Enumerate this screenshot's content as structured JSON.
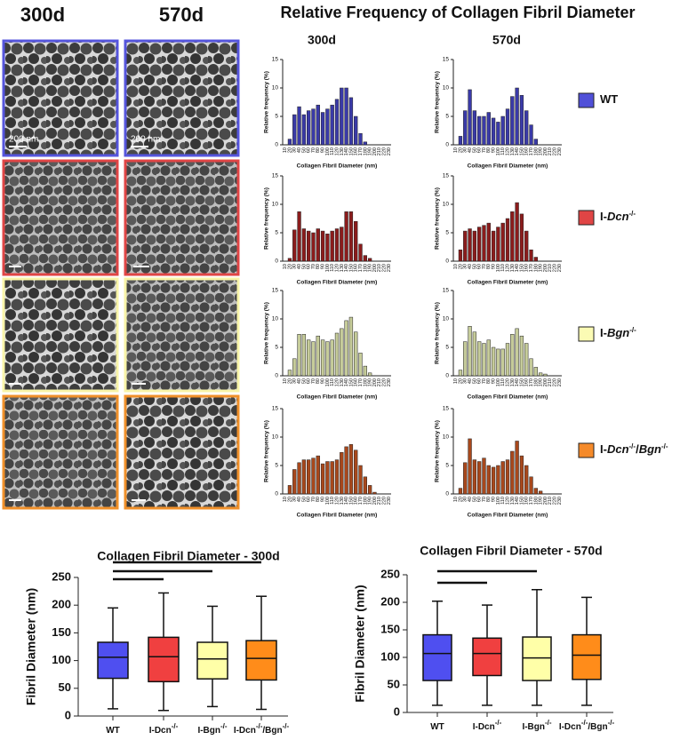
{
  "columns": [
    "300d",
    "570d"
  ],
  "figure_title": "Relative  Frequency of Collagen Fibril Diameter",
  "scale_bar": "200 nm",
  "genotypes": [
    {
      "color": "#5050d8",
      "parts": [
        {
          "text": "WT"
        }
      ]
    },
    {
      "color": "#e04545",
      "parts": [
        {
          "text": "I-"
        },
        {
          "text": "Dcn",
          "italic": true
        },
        {
          "text": "-/-",
          "sup": true
        }
      ]
    },
    {
      "color": "#fbfbb4",
      "parts": [
        {
          "text": "I-"
        },
        {
          "text": "Bgn",
          "italic": true
        },
        {
          "text": "-/-",
          "sup": true
        }
      ]
    },
    {
      "color": "#f58a2a",
      "parts": [
        {
          "text": "I-"
        },
        {
          "text": "Dcn",
          "italic": true
        },
        {
          "text": "-/-",
          "sup": true
        },
        {
          "text": "/"
        },
        {
          "text": "Bgn",
          "italic": true
        },
        {
          "text": "-/-",
          "sup": true
        }
      ]
    }
  ],
  "chart_data": [
    {
      "type": "bar",
      "ylabel": "Relative frequency (%)",
      "xlabel": "Collagen Fibril Diameter (nm)",
      "color": "#3a3aa8",
      "categories": [
        "10",
        "20",
        "30",
        "40",
        "50",
        "60",
        "70",
        "80",
        "90",
        "100",
        "110",
        "120",
        "130",
        "140",
        "150",
        "160",
        "170",
        "180",
        "190",
        "200",
        "210",
        "220",
        "230"
      ],
      "values": [
        0,
        1,
        5.3,
        6.7,
        5.3,
        6,
        6.3,
        7,
        5.7,
        6.3,
        7,
        8,
        10,
        10,
        8.3,
        5,
        2,
        0.5,
        0,
        0,
        0,
        0,
        0
      ],
      "ylim": [
        0,
        15
      ],
      "yticks": [
        0,
        5,
        10,
        15
      ]
    },
    {
      "type": "bar",
      "ylabel": "Relative frequency (%)",
      "xlabel": "Collagen Fibril Diameter (nm)",
      "color": "#3a3aa8",
      "categories": [
        "10",
        "20",
        "30",
        "40",
        "50",
        "60",
        "70",
        "80",
        "90",
        "100",
        "110",
        "120",
        "130",
        "140",
        "150",
        "160",
        "170",
        "180",
        "190",
        "200",
        "210",
        "220",
        "230"
      ],
      "values": [
        0,
        1.5,
        6,
        9.7,
        6,
        5,
        5,
        5.7,
        4.7,
        4,
        5,
        6.3,
        8.5,
        10,
        8.7,
        6,
        3.5,
        1,
        0,
        0,
        0,
        0,
        0
      ],
      "ylim": [
        0,
        15
      ],
      "yticks": [
        0,
        5,
        10,
        15
      ]
    },
    {
      "type": "bar",
      "ylabel": "Relative frequency (%)",
      "xlabel": "Collagen Fibril Diameter (nm)",
      "color": "#8b1c1c",
      "categories": [
        "10",
        "20",
        "30",
        "40",
        "50",
        "60",
        "70",
        "80",
        "90",
        "100",
        "110",
        "120",
        "130",
        "140",
        "150",
        "160",
        "170",
        "180",
        "190",
        "200",
        "210",
        "220",
        "230"
      ],
      "values": [
        0,
        0.5,
        5.5,
        8.7,
        5.7,
        5.3,
        5,
        5.7,
        5.3,
        4.8,
        5.3,
        5.7,
        6,
        8.7,
        8.7,
        7,
        3,
        1,
        0.5,
        0,
        0,
        0,
        0
      ],
      "ylim": [
        0,
        15
      ],
      "yticks": [
        0,
        5,
        10,
        15
      ]
    },
    {
      "type": "bar",
      "ylabel": "Relative frequency (%)",
      "xlabel": "Collagen Fibril Diameter (nm)",
      "color": "#8b1c1c",
      "categories": [
        "10",
        "20",
        "30",
        "40",
        "50",
        "60",
        "70",
        "80",
        "90",
        "100",
        "110",
        "120",
        "130",
        "140",
        "150",
        "160",
        "170",
        "180",
        "190",
        "200",
        "210",
        "220",
        "230"
      ],
      "values": [
        0,
        2,
        5.3,
        5.7,
        5.3,
        6,
        6.3,
        6.7,
        5.3,
        6,
        6.7,
        7.5,
        8.7,
        10.3,
        8.3,
        5.3,
        2,
        0.7,
        0,
        0,
        0,
        0,
        0
      ],
      "ylim": [
        0,
        15
      ],
      "yticks": [
        0,
        5,
        10,
        15
      ]
    },
    {
      "type": "bar",
      "ylabel": "Relative frequency (%)",
      "xlabel": "Collagen Fibril Diameter (nm)",
      "color": "#c6cc9a",
      "categories": [
        "10",
        "20",
        "30",
        "40",
        "50",
        "60",
        "70",
        "80",
        "90",
        "100",
        "110",
        "120",
        "130",
        "140",
        "150",
        "160",
        "170",
        "180",
        "190",
        "200",
        "210",
        "220",
        "230"
      ],
      "values": [
        0,
        1,
        3,
        7.3,
        7.3,
        6.3,
        6,
        7,
        6.3,
        6,
        6.3,
        7.5,
        8.3,
        9.7,
        10.3,
        7.7,
        4,
        1.7,
        0.5,
        0,
        0,
        0,
        0
      ],
      "ylim": [
        0,
        15
      ],
      "yticks": [
        0,
        5,
        10,
        15
      ]
    },
    {
      "type": "bar",
      "ylabel": "Relative frequency (%)",
      "xlabel": "Collagen Fibril Diameter (nm)",
      "color": "#c6cc9a",
      "categories": [
        "10",
        "20",
        "30",
        "40",
        "50",
        "60",
        "70",
        "80",
        "90",
        "100",
        "110",
        "120",
        "130",
        "140",
        "150",
        "160",
        "170",
        "180",
        "190",
        "200",
        "210",
        "220",
        "230"
      ],
      "values": [
        0,
        1,
        6,
        8.7,
        7.7,
        6,
        5.7,
        6.3,
        5,
        4.7,
        4.7,
        5.7,
        7.3,
        8.3,
        7,
        5.7,
        3,
        1.5,
        0.5,
        0.3,
        0,
        0,
        0
      ],
      "ylim": [
        0,
        15
      ],
      "yticks": [
        0,
        5,
        10,
        15
      ]
    },
    {
      "type": "bar",
      "ylabel": "Relative frequency (%)",
      "xlabel": "Collagen Fibril Diameter (nm)",
      "color": "#a8481c",
      "categories": [
        "10",
        "20",
        "30",
        "40",
        "50",
        "60",
        "70",
        "80",
        "90",
        "100",
        "110",
        "120",
        "130",
        "140",
        "150",
        "160",
        "170",
        "180",
        "190",
        "200",
        "210",
        "220",
        "230"
      ],
      "values": [
        0,
        1.5,
        4.3,
        5.5,
        6,
        6,
        6.3,
        6.7,
        5.3,
        5.7,
        5.7,
        6,
        7.3,
        8.3,
        8.7,
        7.7,
        5,
        3,
        1.5,
        0.3,
        0,
        0,
        0
      ],
      "ylim": [
        0,
        15
      ],
      "yticks": [
        0,
        5,
        10,
        15
      ]
    },
    {
      "type": "bar",
      "ylabel": "Relative frequency (%)",
      "xlabel": "Collagen Fibril Diameter (nm)",
      "color": "#a8481c",
      "categories": [
        "10",
        "20",
        "30",
        "40",
        "50",
        "60",
        "70",
        "80",
        "90",
        "100",
        "110",
        "120",
        "130",
        "140",
        "150",
        "160",
        "170",
        "180",
        "190",
        "200",
        "210",
        "220",
        "230"
      ],
      "values": [
        0,
        1,
        5.5,
        9.7,
        6,
        5.7,
        6.3,
        5,
        4.7,
        5,
        5.7,
        6,
        7.5,
        9.3,
        6.7,
        5,
        3,
        1,
        0.5,
        0,
        0,
        0,
        0
      ],
      "ylim": [
        0,
        15
      ],
      "yticks": [
        0,
        5,
        10,
        15
      ]
    },
    {
      "type": "box",
      "title": "Collagen  Fibril Diameter - 300d",
      "ylabel": "Fibril  Diameter (nm)",
      "categories": [
        "WT",
        "I-Dcn-/-",
        "I-Bgn-/-",
        "I-Dcn-/-/Bgn-/-"
      ],
      "boxes": [
        {
          "min": 13,
          "q1": 68,
          "median": 106,
          "q3": 133,
          "max": 195,
          "color": "#4f4ff0"
        },
        {
          "min": 10,
          "q1": 62,
          "median": 107,
          "q3": 142,
          "max": 222,
          "color": "#f04040"
        },
        {
          "min": 17,
          "q1": 67,
          "median": 103,
          "q3": 133,
          "max": 198,
          "color": "#ffffa8"
        },
        {
          "min": 12,
          "q1": 65,
          "median": 104,
          "q3": 136,
          "max": 216,
          "color": "#ff8c1a"
        }
      ],
      "ylim": [
        0,
        250
      ],
      "yticks": [
        0,
        50,
        100,
        150,
        200,
        250
      ]
    },
    {
      "type": "box",
      "title": "Collagen  Fibril Diameter - 570d",
      "ylabel": "Fibril  Diameter (nm)",
      "categories": [
        "WT",
        "I-Dcn-/-",
        "I-Bgn-/-",
        "I-Dcn-/-/Bgn-/-"
      ],
      "boxes": [
        {
          "min": 13,
          "q1": 58,
          "median": 107,
          "q3": 141,
          "max": 202,
          "color": "#4f4ff0"
        },
        {
          "min": 13,
          "q1": 67,
          "median": 107,
          "q3": 135,
          "max": 195,
          "color": "#f04040"
        },
        {
          "min": 13,
          "q1": 58,
          "median": 99,
          "q3": 137,
          "max": 223,
          "color": "#ffffa8"
        },
        {
          "min": 13,
          "q1": 60,
          "median": 104,
          "q3": 141,
          "max": 209,
          "color": "#ff8c1a"
        }
      ],
      "ylim": [
        0,
        250
      ],
      "yticks": [
        0,
        50,
        100,
        150,
        200,
        250
      ]
    }
  ]
}
